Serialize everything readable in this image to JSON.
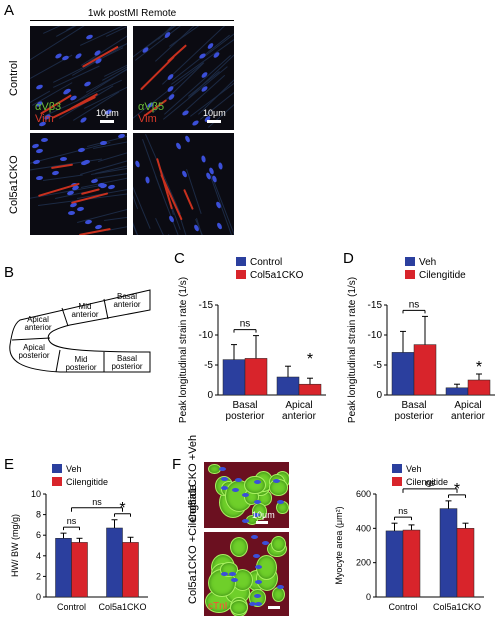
{
  "panelA": {
    "label": "A",
    "header": "1wk postMI Remote",
    "row_control": "Control",
    "row_cko": "Col5a1CKO",
    "stain1_a": "αVβ3",
    "stain1_b": "Vim",
    "stain2_a": "αVβ5",
    "stain2_b": "Vim",
    "scale1": "10μm",
    "scale2": "10μm"
  },
  "panelB": {
    "label": "B",
    "regions": [
      "Basal anterior",
      "Mid anterior",
      "Apical anterior",
      "Apical posterior",
      "Mid posterior",
      "Basal posterior"
    ]
  },
  "panelF": {
    "label": "F",
    "row1": "Col5a1CKO +Veh",
    "row2": "Col5a1CKO +Cilengitide",
    "scale": "10μm",
    "stain": "cTnI"
  },
  "colors": {
    "blue": "#2b3f9e",
    "red": "#d8242b",
    "fiber": "#1c2a44"
  },
  "chart_data": [
    {
      "id": "C",
      "type": "bar",
      "label": "C",
      "legend": [
        "Control",
        "Col5a1CKO"
      ],
      "categories": [
        "Basal posterior",
        "Apical anterior"
      ],
      "ylabel": "Peak longitudinal strain rate (1/s)",
      "ylim": [
        0,
        -15
      ],
      "yticks": [
        0,
        -5,
        -10,
        -15
      ],
      "ytick_labels": [
        "0",
        "-5",
        "-10",
        "-15"
      ],
      "series": [
        {
          "name": "Control",
          "values": [
            -5.9,
            -3.0
          ],
          "errors": [
            2.5,
            1.8
          ]
        },
        {
          "name": "Col5a1CKO",
          "values": [
            -6.1,
            -1.8
          ],
          "errors": [
            3.8,
            1.0
          ]
        }
      ],
      "annotations": [
        {
          "group": 0,
          "text": "ns"
        },
        {
          "group": 1,
          "text": "*"
        }
      ]
    },
    {
      "id": "D",
      "type": "bar",
      "label": "D",
      "legend": [
        "Veh",
        "Cilengitide"
      ],
      "categories": [
        "Basal posterior",
        "Apical anterior"
      ],
      "ylabel": "Peak longitudinal strain rate (1/s)",
      "ylim": [
        0,
        -15
      ],
      "yticks": [
        0,
        -5,
        -10,
        -15
      ],
      "ytick_labels": [
        "0",
        "-5",
        "-10",
        "-15"
      ],
      "series": [
        {
          "name": "Veh",
          "values": [
            -7.1,
            -1.2
          ],
          "errors": [
            3.5,
            0.6
          ]
        },
        {
          "name": "Cilengitide",
          "values": [
            -8.4,
            -2.5
          ],
          "errors": [
            4.7,
            1.0
          ]
        }
      ],
      "annotations": [
        {
          "group": 0,
          "text": "ns"
        },
        {
          "group": 1,
          "text": "*"
        }
      ]
    },
    {
      "id": "E",
      "type": "bar",
      "label": "E",
      "legend": [
        "Veh",
        "Cilengitide"
      ],
      "categories": [
        "Control",
        "Col5a1CKO"
      ],
      "ylabel": "HW/ BW (mg/g)",
      "ylim": [
        0,
        10
      ],
      "yticks": [
        0,
        2,
        4,
        6,
        8,
        10
      ],
      "ytick_labels": [
        "0",
        "2",
        "4",
        "6",
        "8",
        "10"
      ],
      "series": [
        {
          "name": "Veh",
          "values": [
            5.7,
            6.7
          ],
          "errors": [
            0.5,
            0.8
          ]
        },
        {
          "name": "Cilengitide",
          "values": [
            5.3,
            5.3
          ],
          "errors": [
            0.4,
            0.5
          ]
        }
      ],
      "annotations": [
        {
          "group": 0,
          "text": "ns"
        },
        {
          "group": 1,
          "text": "*"
        },
        {
          "span": "all",
          "text": "ns"
        }
      ]
    },
    {
      "id": "F",
      "type": "bar",
      "legend": [
        "Veh",
        "Cilengitide"
      ],
      "categories": [
        "Control",
        "Col5a1CKO"
      ],
      "ylabel": "Myocyte area (μm²)",
      "ylim": [
        0,
        600
      ],
      "yticks": [
        0,
        200,
        400,
        600
      ],
      "ytick_labels": [
        "0",
        "200",
        "400",
        "600"
      ],
      "series": [
        {
          "name": "Veh",
          "values": [
            385,
            515
          ],
          "errors": [
            45,
            45
          ]
        },
        {
          "name": "Cilengitide",
          "values": [
            390,
            400
          ],
          "errors": [
            30,
            30
          ]
        }
      ],
      "annotations": [
        {
          "group": 0,
          "text": "ns"
        },
        {
          "group": 1,
          "text": "*"
        },
        {
          "span": "all",
          "text": "ns"
        }
      ]
    }
  ]
}
